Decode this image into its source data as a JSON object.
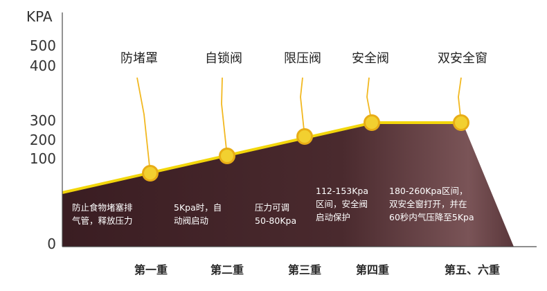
{
  "colors": {
    "fill_dark": "#3a1d22",
    "fill_light": "#7a5457",
    "line": "#f2d60c",
    "marker": "#e8ad16",
    "axis": "#4a4a4a",
    "leader": "#f2b820"
  },
  "y_axis": {
    "title": "KPA",
    "ticks": [
      "500",
      "400",
      "300",
      "200",
      "100",
      "0"
    ]
  },
  "devices": [
    "防堵罩",
    "自锁阀",
    "限压阀",
    "安全阀",
    "双安全窗"
  ],
  "descriptions": [
    "防止食物堵塞排\n气管，释放压力",
    "5Kpa时，自\n动阀启动",
    "压力可调\n50-80Kpa",
    "112-153Kpa\n区间，安全阀\n启动保护",
    "180-260Kpa区间，\n双安全窗打开，并在\n60秒内气压降至5Kpa"
  ],
  "stages": [
    "第一重",
    "第二重",
    "第三重",
    "第四重",
    "第五、六重"
  ]
}
